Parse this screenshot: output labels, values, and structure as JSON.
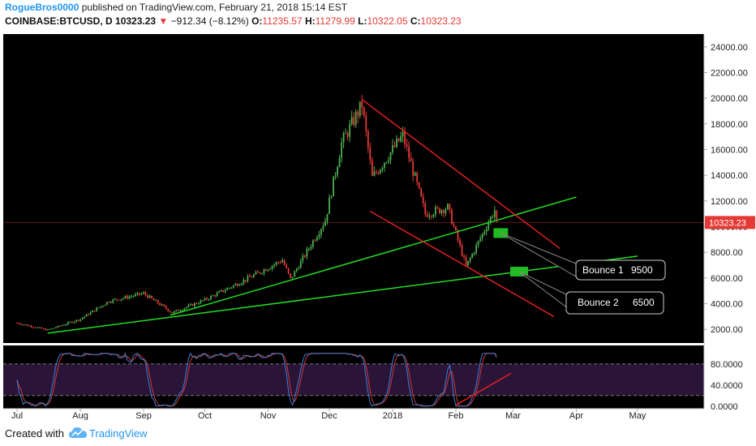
{
  "header": {
    "author": "RogueBros0000",
    "published_text": "published on TradingView.com, February 21, 2018 15:14 EST",
    "symbol": "COINBASE:BTCUSD, D",
    "last_price": "10323.23",
    "change": "−912.34 (−8.12%)",
    "o_label": "O:",
    "o_value": "11235.57",
    "h_label": "H:",
    "h_value": "11279.99",
    "l_label": "L:",
    "l_value": "10322.05",
    "c_label": "C:",
    "c_value": "10323.23"
  },
  "footer": {
    "created_with": "Created with",
    "brand": "TradingView"
  },
  "colors": {
    "background": "#000000",
    "up_candle": "#4caf50",
    "down_candle": "#e53935",
    "support_line": "#22dd22",
    "channel_line": "#e02020",
    "stoch_k": "#3f7fd6",
    "stoch_d": "#d03a3a",
    "stoch_band": "#2a1438"
  },
  "chart_data": [
    {
      "type": "candlestick",
      "y_ticks": [
        "24000.00",
        "22000.00",
        "20000.00",
        "18000.00",
        "16000.00",
        "14000.00",
        "12000.00",
        "10000.00",
        "8000.00",
        "6000.00",
        "4000.00",
        "2000.00"
      ],
      "ylim": [
        1000,
        25000
      ],
      "x_ticks": [
        "Jul",
        "Aug",
        "Sep",
        "Oct",
        "Nov",
        "Dec",
        "2018",
        "Feb",
        "Mar",
        "Apr",
        "May"
      ],
      "price_label": "10323.23",
      "approx_path": [
        {
          "date": "2017-07-01",
          "close": 2500
        },
        {
          "date": "2017-07-16",
          "close": 1950
        },
        {
          "date": "2017-08-01",
          "close": 2800
        },
        {
          "date": "2017-08-15",
          "close": 4200
        },
        {
          "date": "2017-09-01",
          "close": 4800
        },
        {
          "date": "2017-09-15",
          "close": 3300
        },
        {
          "date": "2017-10-01",
          "close": 4300
        },
        {
          "date": "2017-10-20",
          "close": 5800
        },
        {
          "date": "2017-11-08",
          "close": 7400
        },
        {
          "date": "2017-11-12",
          "close": 5900
        },
        {
          "date": "2017-11-29",
          "close": 10500
        },
        {
          "date": "2017-12-07",
          "close": 16500
        },
        {
          "date": "2017-12-17",
          "close": 19500
        },
        {
          "date": "2017-12-22",
          "close": 13800
        },
        {
          "date": "2018-01-06",
          "close": 17100
        },
        {
          "date": "2018-01-17",
          "close": 11000
        },
        {
          "date": "2018-01-28",
          "close": 11500
        },
        {
          "date": "2018-02-06",
          "close": 6900
        },
        {
          "date": "2018-02-20",
          "close": 11300
        },
        {
          "date": "2018-02-21",
          "close": 10323
        }
      ],
      "annotations": [
        {
          "label": "Bounce 1",
          "value": "9500"
        },
        {
          "label": "Bounce 2",
          "value": "6500"
        }
      ]
    },
    {
      "type": "line",
      "name": "stochastic_rsi",
      "y_ticks": [
        "80.0000",
        "40.0000",
        "0.0000"
      ],
      "ylim": [
        -5,
        115
      ],
      "band": [
        20,
        80
      ]
    }
  ]
}
